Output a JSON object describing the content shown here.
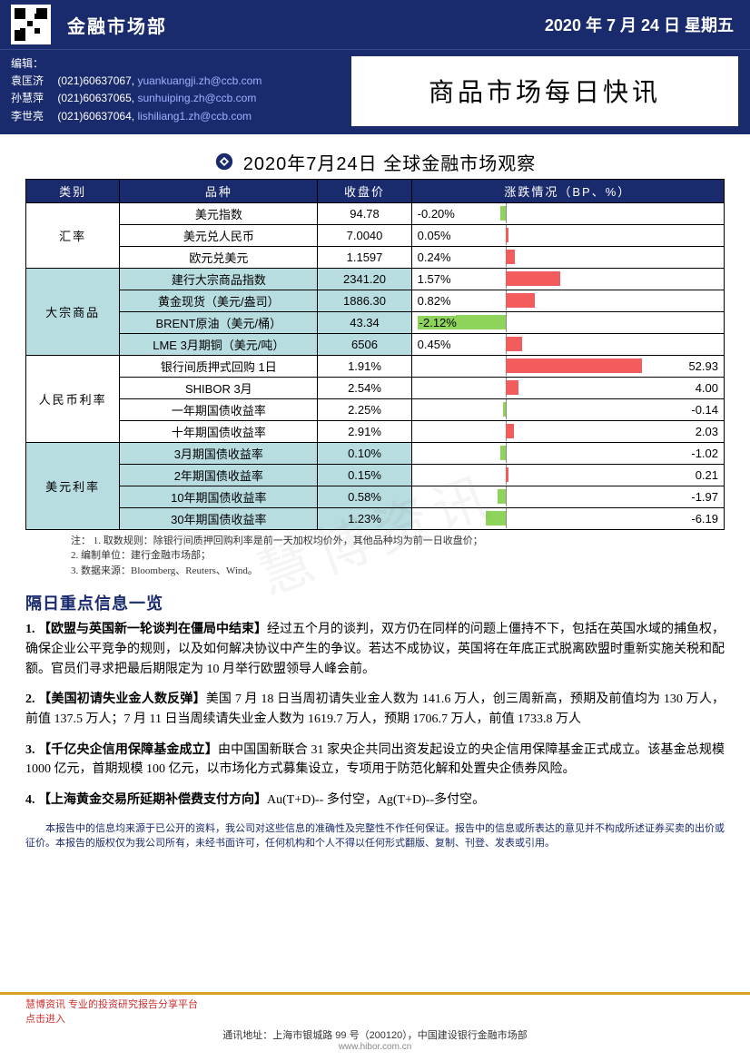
{
  "header": {
    "department": "金融市场部",
    "date_label": "2020 年 7 月 24 日 星期五",
    "editors_label": "编辑：",
    "editors": [
      {
        "name": "袁匡济",
        "phone": "(021)60637067,",
        "email": "yuankuangji.zh@ccb.com"
      },
      {
        "name": "孙慧萍",
        "phone": "(021)60637065,",
        "email": "sunhuiping.zh@ccb.com"
      },
      {
        "name": "李世亮",
        "phone": "(021)60637064,",
        "email": "lishiliang1.zh@ccb.com"
      }
    ],
    "main_title": "商品市场每日快讯"
  },
  "table": {
    "subtitle": "2020年7月24日 全球金融市场观察",
    "columns": [
      "类别",
      "品种",
      "收盘价",
      "涨跌情况（BP、%）"
    ],
    "groups": [
      {
        "category": "汇率",
        "alt": false,
        "rows": [
          {
            "instrument": "美元指数",
            "price": "94.78",
            "change_text": "-0.20%",
            "bar_dir": "neg",
            "bar_len": 6,
            "label_side": "left"
          },
          {
            "instrument": "美元兑人民币",
            "price": "7.0040",
            "change_text": "0.05%",
            "bar_dir": "pos",
            "bar_len": 3,
            "label_side": "left"
          },
          {
            "instrument": "欧元兑美元",
            "price": "1.1597",
            "change_text": "0.24%",
            "bar_dir": "pos",
            "bar_len": 10,
            "label_side": "left"
          }
        ]
      },
      {
        "category": "大宗商品",
        "alt": true,
        "rows": [
          {
            "instrument": "建行大宗商品指数",
            "price": "2341.20",
            "change_text": "1.57%",
            "bar_dir": "pos",
            "bar_len": 60,
            "label_side": "left"
          },
          {
            "instrument": "黄金现货（美元/盎司）",
            "price": "1886.30",
            "change_text": "0.82%",
            "bar_dir": "pos",
            "bar_len": 32,
            "label_side": "left"
          },
          {
            "instrument": "BRENT原油（美元/桶）",
            "price": "43.34",
            "change_text": "-2.12%",
            "bar_dir": "neg",
            "bar_len": 55,
            "label_side": "left",
            "neg_hl": true
          },
          {
            "instrument": "LME 3月期铜（美元/吨）",
            "price": "6506",
            "change_text": "0.45%",
            "bar_dir": "pos",
            "bar_len": 18,
            "label_side": "left"
          }
        ]
      },
      {
        "category": "人民币利率",
        "alt": false,
        "rows": [
          {
            "instrument": "银行间质押式回购 1日",
            "price": "1.91%",
            "change_text": "52.93",
            "bar_dir": "pos",
            "bar_len": 150,
            "label_side": "right"
          },
          {
            "instrument": "SHIBOR 3月",
            "price": "2.54%",
            "change_text": "4.00",
            "bar_dir": "pos",
            "bar_len": 14,
            "label_side": "right"
          },
          {
            "instrument": "一年期国债收益率",
            "price": "2.25%",
            "change_text": "-0.14",
            "bar_dir": "neg",
            "bar_len": 3,
            "label_side": "right"
          },
          {
            "instrument": "十年期国债收益率",
            "price": "2.91%",
            "change_text": "2.03",
            "bar_dir": "pos",
            "bar_len": 9,
            "label_side": "right"
          }
        ]
      },
      {
        "category": "美元利率",
        "alt": true,
        "rows": [
          {
            "instrument": "3月期国债收益率",
            "price": "0.10%",
            "change_text": "-1.02",
            "bar_dir": "neg",
            "bar_len": 6,
            "label_side": "right"
          },
          {
            "instrument": "2年期国债收益率",
            "price": "0.15%",
            "change_text": "0.21",
            "bar_dir": "pos",
            "bar_len": 3,
            "label_side": "right"
          },
          {
            "instrument": "10年期国债收益率",
            "price": "0.58%",
            "change_text": "-1.97",
            "bar_dir": "neg",
            "bar_len": 9,
            "label_side": "right"
          },
          {
            "instrument": "30年期国债收益率",
            "price": "1.23%",
            "change_text": "-6.19",
            "bar_dir": "neg",
            "bar_len": 22,
            "label_side": "right"
          }
        ]
      }
    ],
    "chart_style": {
      "axis_left_pct": 30,
      "pos_color": "#f25c5c",
      "neg_color": "#8ed45a",
      "neg_hl_bg": "#8ed45a"
    },
    "notes_label": "注：",
    "notes": [
      "1. 取数规则：除银行间质押回购利率是前一天加权均价外，其他品种均为前一日收盘价；",
      "2. 编制单位：建行金融市场部；",
      "3. 数据来源：Bloomberg、Reuters、Wind。"
    ]
  },
  "news": {
    "section_title": "隔日重点信息一览",
    "items": [
      {
        "num": "1.",
        "title": "【欧盟与英国新一轮谈判在僵局中结束】",
        "body": "经过五个月的谈判，双方仍在同样的问题上僵持不下，包括在英国水域的捕鱼权，确保企业公平竞争的规则，以及如何解决协议中产生的争议。若达不成协议，英国将在年底正式脱离欧盟时重新实施关税和配额。官员们寻求把最后期限定为 10 月举行欧盟领导人峰会前。"
      },
      {
        "num": "2.",
        "title": "【美国初请失业金人数反弹】",
        "body": "美国 7 月 18 日当周初请失业金人数为 141.6 万人，创三周新高，预期及前值均为 130 万人，前值 137.5 万人；7 月 11 日当周续请失业金人数为 1619.7 万人，预期 1706.7 万人，前值 1733.8 万人"
      },
      {
        "num": "3.",
        "title": "【千亿央企信用保障基金成立】",
        "body": "由中国国新联合 31 家央企共同出资发起设立的央企信用保障基金正式成立。该基金总规模 1000 亿元，首期规模 100 亿元，以市场化方式募集设立，专项用于防范化解和处置央企债券风险。"
      },
      {
        "num": "4.",
        "title": "【上海黄金交易所延期补偿费支付方向】",
        "body": "Au(T+D)-- 多付空，Ag(T+D)--多付空。"
      }
    ]
  },
  "disclaimer": "本报告中的信息均来源于已公开的资料，我公司对这些信息的准确性及完整性不作任何保证。报告中的信息或所表达的意见并不构成所述证券买卖的出价或征价。本报告的版权仅为我公司所有，未经书面许可，任何机构和个人不得以任何形式翻版、复制、刊登、发表或引用。",
  "footer": {
    "red1": "慧博资讯  专业的投资研究报告分享平台",
    "red2": "点击进入",
    "address_label": "通讯地址：",
    "address": "上海市银城路 99 号（200120），中国建设银行金融市场部",
    "url": "www.hibor.com.cn"
  },
  "watermark": "慧博资讯"
}
